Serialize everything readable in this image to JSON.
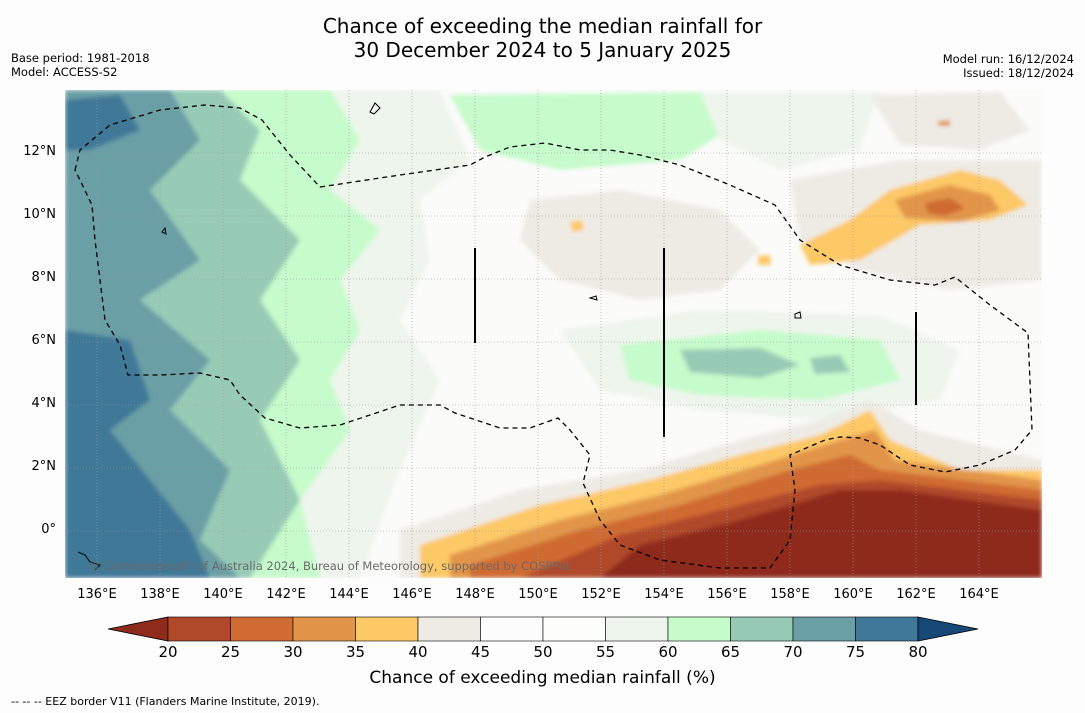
{
  "title": {
    "line1": "Chance of exceeding the median rainfall for",
    "line2": "30 December 2024 to 5 January 2025"
  },
  "meta": {
    "base_period": "Base period: 1981-2018",
    "model": "Model: ACCESS-S2",
    "model_run": "Model run: 16/12/2024",
    "issued": "Issued: 18/12/2024"
  },
  "map": {
    "longitude_labels": [
      "136°E",
      "138°E",
      "140°E",
      "142°E",
      "144°E",
      "146°E",
      "148°E",
      "150°E",
      "152°E",
      "154°E",
      "156°E",
      "158°E",
      "160°E",
      "162°E",
      "164°E"
    ],
    "latitude_labels": [
      "12°N",
      "10°N",
      "8°N",
      "6°N",
      "4°N",
      "2°N",
      "0°"
    ],
    "copyright": "© Commonwealth of Australia 2024, Bureau of Meteorology, supported by COSPPac"
  },
  "colorbar": {
    "labels": [
      "20",
      "25",
      "30",
      "35",
      "40",
      "45",
      "50",
      "55",
      "60",
      "65",
      "70",
      "75",
      "80"
    ],
    "colors": [
      "#8e2b1c",
      "#b0492a",
      "#cf6b33",
      "#e29548",
      "#fdc866",
      "#eeebe5",
      "#fcfcfc",
      "#fdfdfb",
      "#eef5ec",
      "#c6fbcb",
      "#97cbb6",
      "#6a9fa6",
      "#3f7898",
      "#164878"
    ],
    "title": "Chance of exceeding median rainfall (%)"
  },
  "footnote": "--  --  -- EEZ border V11 (Flanders Marine Institute, 2019)."
}
